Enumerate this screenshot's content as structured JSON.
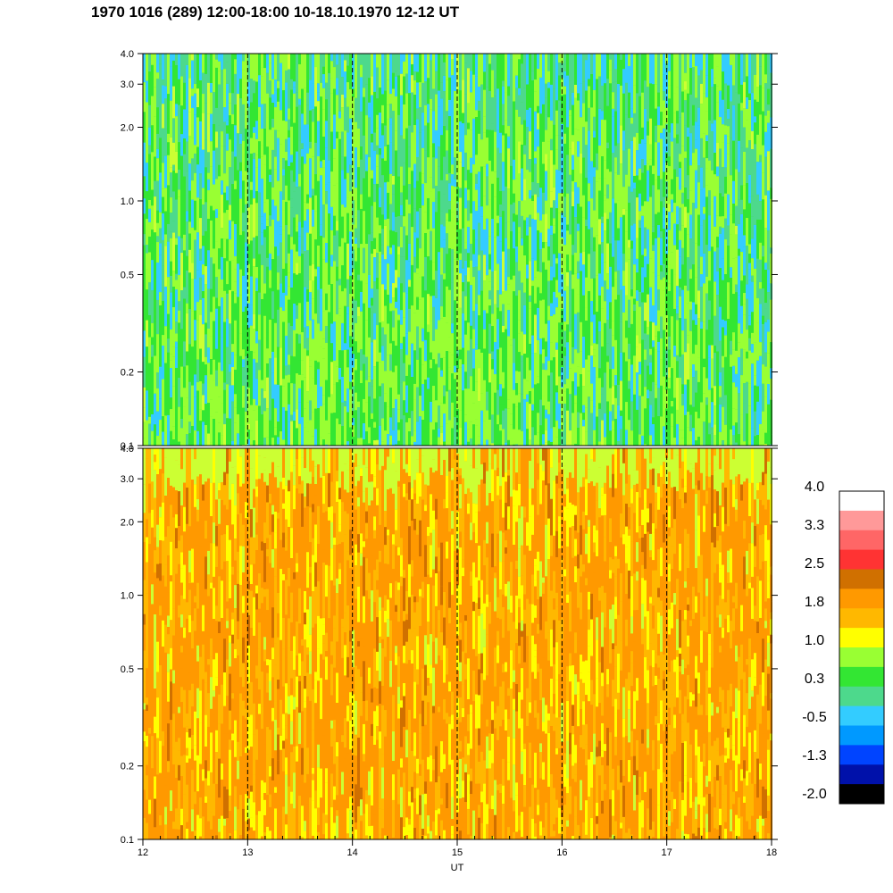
{
  "title": "1970 1016 (289) 12:00-18:00 10-18.10.1970  12-12 UT",
  "chart_data": [
    {
      "type": "heatmap",
      "panel": "top",
      "x_range": [
        12,
        18
      ],
      "y_scale": "log",
      "y_range": [
        0.1,
        4.0
      ],
      "y_ticks": [
        "0.1",
        "0.2",
        "0.5",
        "1.0",
        "2.0",
        "3.0",
        "4.0"
      ],
      "y_tick_values": [
        0.1,
        0.2,
        0.5,
        1.0,
        2.0,
        3.0,
        4.0
      ],
      "dashed_lines_x": [
        13,
        14,
        15,
        16,
        17
      ],
      "dominant_level": 0.3
    },
    {
      "type": "heatmap",
      "panel": "bottom",
      "x_range": [
        12,
        18
      ],
      "y_scale": "log",
      "y_range": [
        0.1,
        4.0
      ],
      "y_ticks": [
        "0.1",
        "0.2",
        "0.5",
        "1.0",
        "2.0",
        "3.0",
        "4.0"
      ],
      "y_tick_values": [
        0.1,
        0.2,
        0.5,
        1.0,
        2.0,
        3.0,
        4.0
      ],
      "x_ticks": [
        "12",
        "13",
        "14",
        "15",
        "16",
        "17",
        "18"
      ],
      "x_tick_values": [
        12,
        13,
        14,
        15,
        16,
        17,
        18
      ],
      "xlabel": "UT",
      "dashed_lines_x": [
        13,
        14,
        15,
        16,
        17
      ],
      "dominant_level": 1.8
    }
  ],
  "colorbar": {
    "labels": [
      "4.0",
      "3.3",
      "2.5",
      "1.8",
      "1.0",
      "0.3",
      "-0.5",
      "-1.3",
      "-2.0"
    ],
    "colors": [
      "#ffffff",
      "#ff9999",
      "#ff6666",
      "#ff3333",
      "#d07000",
      "#ff9900",
      "#ffb800",
      "#ffff00",
      "#99ff33",
      "#33e633",
      "#4dd98c",
      "#33ccff",
      "#0099ff",
      "#0044ff",
      "#0011aa",
      "#000000"
    ]
  }
}
